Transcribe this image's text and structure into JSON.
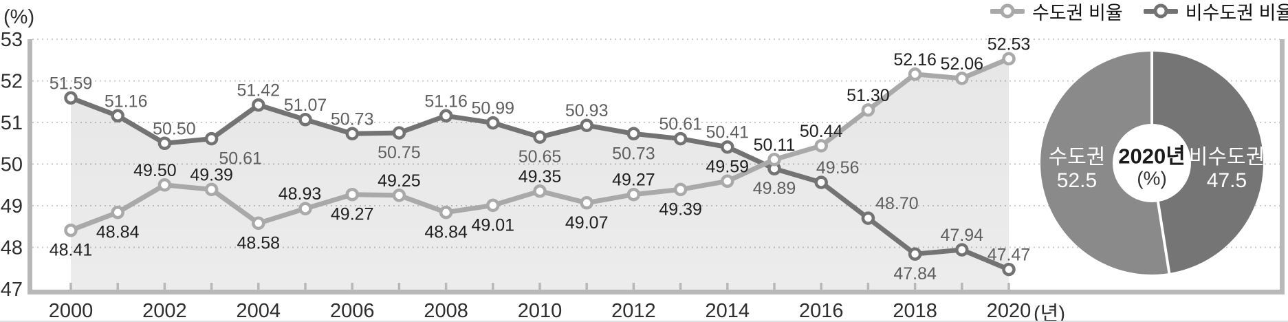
{
  "chart_data": [
    {
      "type": "line",
      "title": "",
      "xlabel": "(년)",
      "ylabel": "(%)",
      "x": [
        2000,
        2001,
        2002,
        2003,
        2004,
        2005,
        2006,
        2007,
        2008,
        2009,
        2010,
        2011,
        2012,
        2013,
        2014,
        2015,
        2016,
        2017,
        2018,
        2019,
        2020
      ],
      "x_tick_label_step": 2,
      "ylim": [
        47,
        53
      ],
      "yticks": [
        47,
        48,
        49,
        50,
        51,
        52,
        53
      ],
      "grid": "dotted-horizontal",
      "legend_position": "top-right",
      "series": [
        {
          "name": "수도권 비율",
          "color": "#a9a9a9",
          "label_color": "#1f1f1f",
          "values": [
            48.41,
            48.84,
            49.5,
            49.39,
            48.58,
            48.93,
            49.27,
            49.25,
            48.84,
            49.01,
            49.35,
            49.07,
            49.27,
            49.39,
            49.59,
            50.11,
            50.44,
            51.3,
            52.16,
            52.06,
            52.53
          ],
          "label_side": [
            "b",
            "b",
            "a",
            "a",
            "b",
            "a",
            "b",
            "a",
            "b",
            "b",
            "a",
            "b",
            "a",
            "b",
            "a",
            "a",
            "a",
            "a",
            "a",
            "a",
            "a"
          ],
          "label_dx": [
            0,
            0,
            -14,
            0,
            0,
            -8,
            0,
            0,
            0,
            0,
            0,
            0,
            0,
            0,
            0,
            0,
            0,
            0,
            0,
            0,
            0
          ]
        },
        {
          "name": "비수도권 비율",
          "color": "#737373",
          "label_color": "#5f5f5f",
          "values": [
            51.59,
            51.16,
            50.5,
            50.61,
            51.42,
            51.07,
            50.73,
            50.75,
            51.16,
            50.99,
            50.65,
            50.93,
            50.73,
            50.61,
            50.41,
            49.89,
            49.56,
            48.7,
            47.84,
            47.94,
            47.47
          ],
          "label_side": [
            "a",
            "a",
            "a",
            "b",
            "a",
            "a",
            "a",
            "b",
            "a",
            "a",
            "b",
            "a",
            "b",
            "a",
            "a",
            "b",
            "a",
            "a",
            "b",
            "a",
            "a"
          ],
          "label_dx": [
            0,
            12,
            14,
            42,
            0,
            0,
            0,
            0,
            0,
            0,
            0,
            0,
            0,
            0,
            0,
            0,
            24,
            42,
            0,
            0,
            0
          ]
        }
      ],
      "area_fill": "below-upper-envelope"
    },
    {
      "type": "pie",
      "donut": true,
      "start": "top",
      "direction": "clockwise",
      "center_label": [
        "2020년",
        "(%)"
      ],
      "segments": [
        {
          "label": "비수도권",
          "value": 47.5,
          "color": "#757575"
        },
        {
          "label": "수도권",
          "value": 52.5,
          "color": "#8a8a8a"
        }
      ]
    }
  ]
}
